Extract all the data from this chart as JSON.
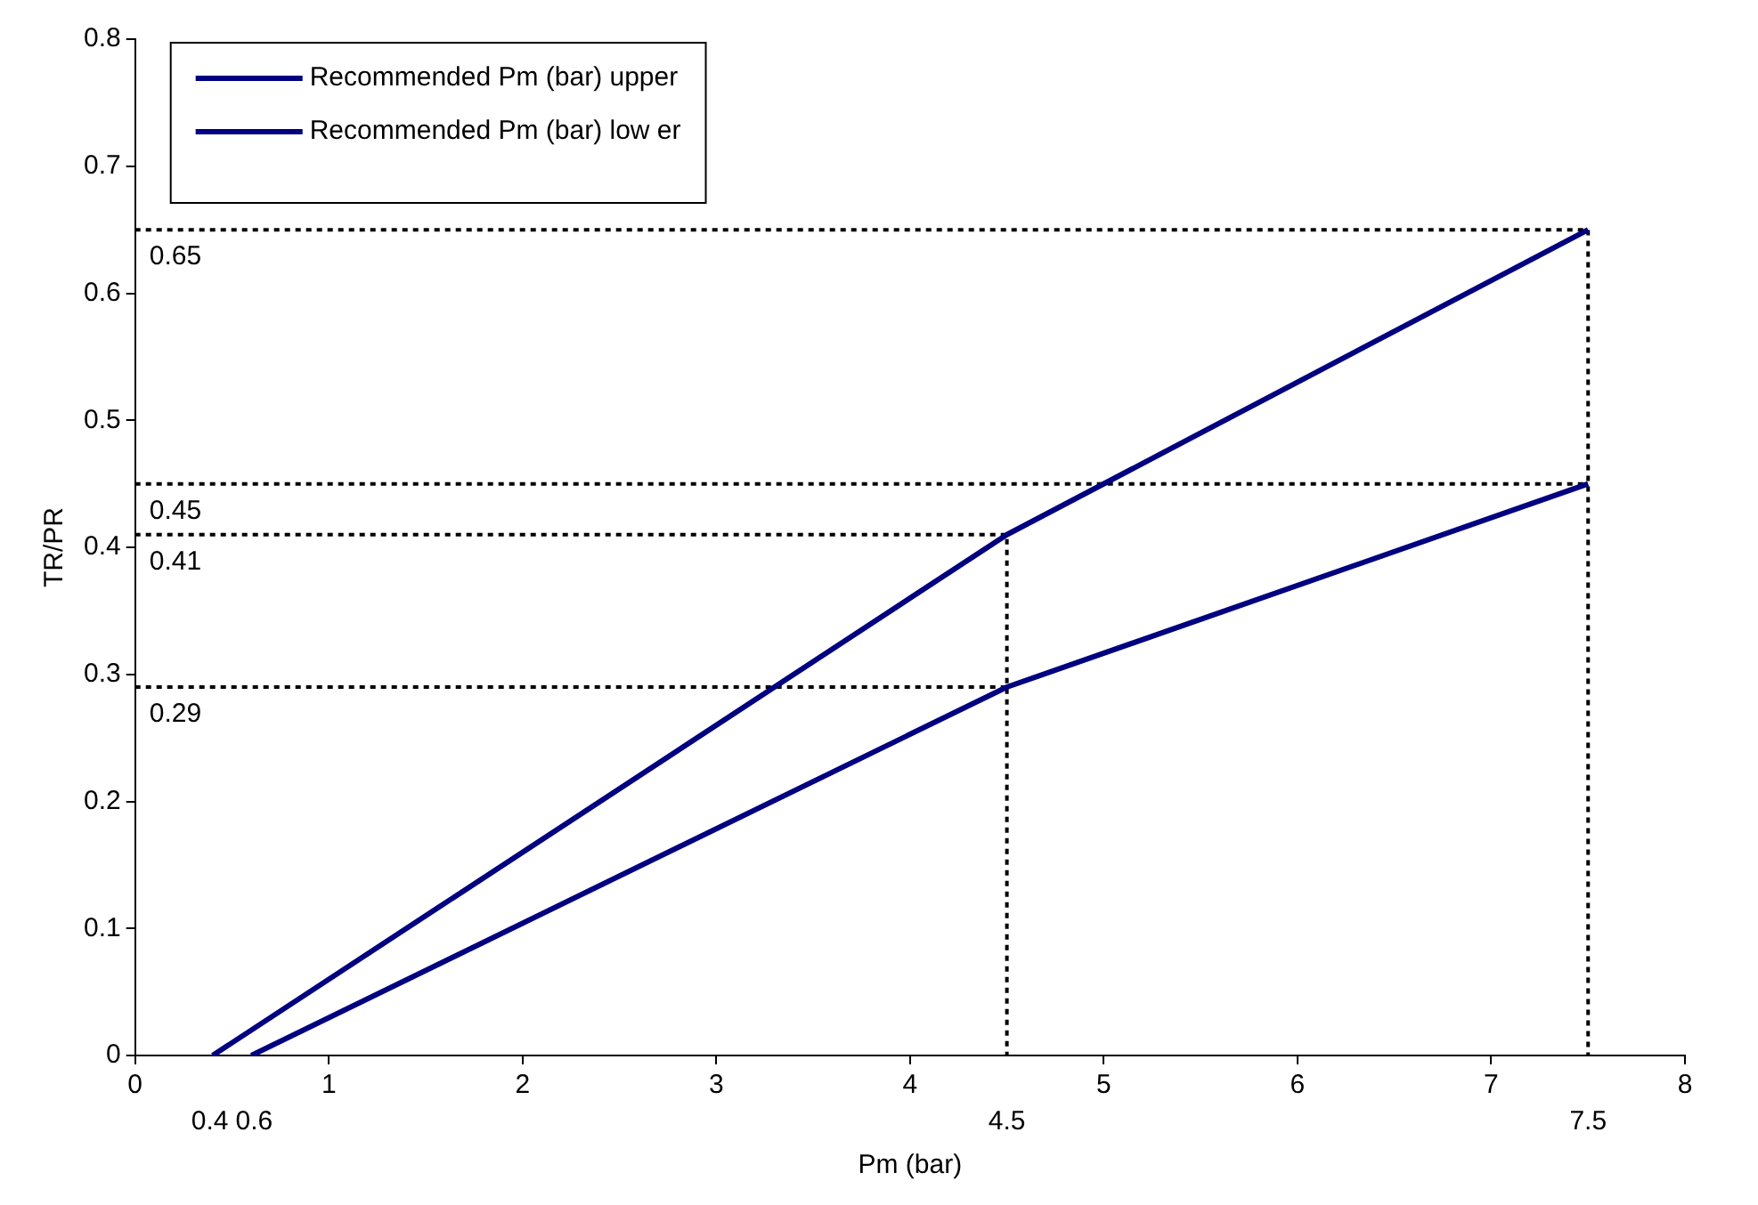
{
  "chart_data": {
    "type": "line",
    "xlabel": "Pm (bar)",
    "ylabel": "TR/PR",
    "series": [
      {
        "name": "Recommended Pm (bar) upper",
        "color": "#000080",
        "x": [
          0.4,
          4.5,
          7.5
        ],
        "values": [
          0,
          0.41,
          0.65
        ]
      },
      {
        "name": "Recommended Pm (bar) low er",
        "color": "#000080",
        "x": [
          0.6,
          4.5,
          7.5
        ],
        "values": [
          0,
          0.29,
          0.45
        ]
      },
      {
        "color": "#000000",
        "line_style": "dotted",
        "x": [
          0,
          4.5,
          4.5
        ],
        "values": [
          0.41,
          0.41,
          0
        ]
      },
      {
        "color": "#000000",
        "line_style": "dotted",
        "x": [
          0,
          4.5
        ],
        "values": [
          0.29,
          0.29
        ]
      },
      {
        "color": "#000000",
        "line_style": "dotted",
        "x": [
          0,
          7.5,
          7.5
        ],
        "values": [
          0.65,
          0.65,
          0
        ]
      },
      {
        "color": "#000000",
        "line_style": "dotted",
        "x": [
          0,
          7.5
        ],
        "values": [
          0.45,
          0.45
        ]
      }
    ],
    "annotations": [
      {
        "text": "0.65",
        "x": 0,
        "y": 0.65
      },
      {
        "text": "0.45",
        "x": 0,
        "y": 0.45
      },
      {
        "text": "0.41",
        "x": 0,
        "y": 0.41
      },
      {
        "text": "0.29",
        "x": 0,
        "y": 0.29
      },
      {
        "text": "0.4",
        "x": 0.4,
        "y": 0
      },
      {
        "text": "0.6",
        "x": 0.6,
        "y": 0
      },
      {
        "text": "4.5",
        "x": 4.5,
        "y": 0
      },
      {
        "text": "7.5",
        "x": 7.5,
        "y": 0
      }
    ],
    "xlim": [
      0,
      8
    ],
    "xticks": [
      0,
      1,
      2,
      3,
      4,
      5,
      6,
      7,
      8
    ],
    "ylim": [
      0,
      0.8
    ],
    "yticks": [
      0,
      0.1,
      0.2,
      0.3,
      0.4,
      0.5,
      0.6,
      0.7,
      0.8
    ],
    "grid": false,
    "legend": "top left",
    "marker": "none",
    "line_style": "solid"
  }
}
